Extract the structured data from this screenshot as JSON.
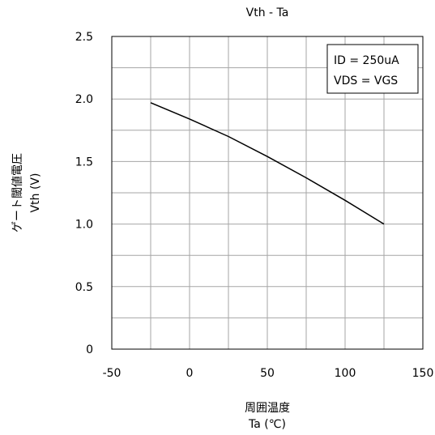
{
  "chart_data": {
    "type": "line",
    "title": "Vth - Ta",
    "xlabel_lines": [
      "周囲温度",
      "Ta (℃)"
    ],
    "ylabel_lines": [
      "ゲート閾値電圧",
      "Vth (V)"
    ],
    "xlim": [
      -50,
      150
    ],
    "ylim": [
      0,
      2.5
    ],
    "x_major_ticks": [
      -50,
      0,
      50,
      100,
      150
    ],
    "x_tick_labels": [
      "-50",
      "0",
      "50",
      "100",
      "150"
    ],
    "x_minor_step": 25,
    "y_major_ticks": [
      0,
      0.5,
      1.0,
      1.5,
      2.0,
      2.5
    ],
    "y_tick_labels": [
      "0",
      "0.5",
      "1.0",
      "1.5",
      "2.0",
      "2.5"
    ],
    "y_minor_step": 0.25,
    "grid": true,
    "legend_position": "top-right",
    "legend_lines": [
      "ID = 250uA",
      "VDS = VGS"
    ],
    "line_color": "#000000",
    "grid_color": "#a6a6a6",
    "series": [
      {
        "x": [
          -25,
          0,
          25,
          50,
          75,
          100,
          125
        ],
        "y": [
          1.97,
          1.84,
          1.7,
          1.54,
          1.37,
          1.19,
          1.0
        ]
      }
    ]
  }
}
